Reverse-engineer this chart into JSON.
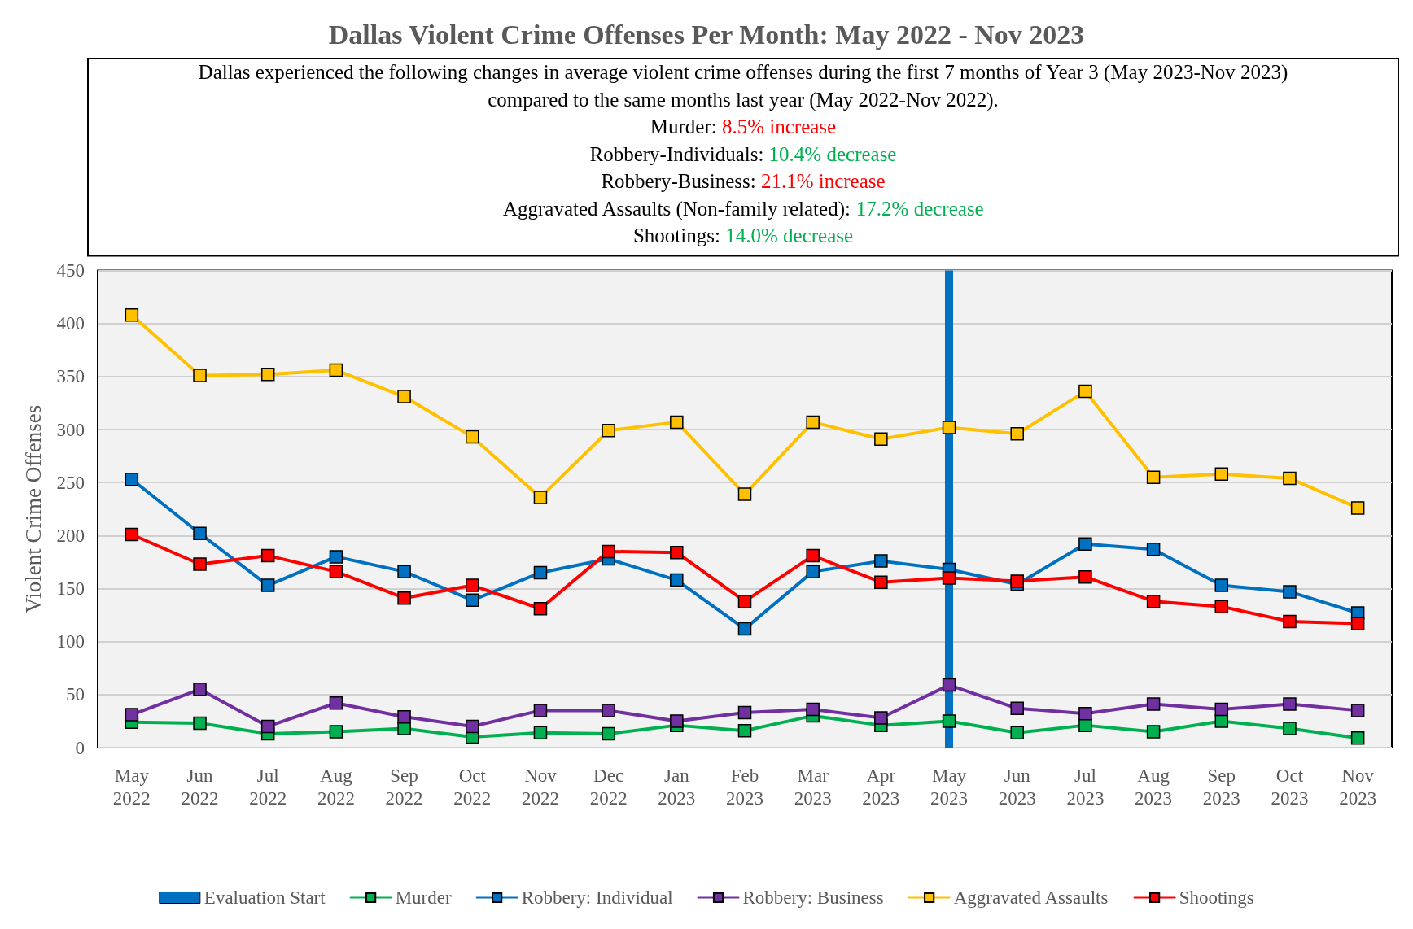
{
  "chart_data": {
    "type": "line",
    "title": "Dallas Violent Crime Offenses Per Month: May 2022 - Nov 2023",
    "annotations": [
      "Dallas experienced the following changes in average violent crime offenses during the first 7 months of Year 3 (May 2023-Nov 2023)",
      "compared to the same months last year (May 2022-Nov 2022).",
      "Murder: 8.5% increase",
      "Robbery-Individuals: 10.4% decrease",
      "Robbery-Business: 21.1% increase",
      "Aggravated Assaults (Non-family related): 17.2% decrease",
      "Shootings: 14.0% decrease"
    ],
    "ylabel": "Violent Crime Offenses",
    "categories": [
      "May 2022",
      "Jun 2022",
      "Jul 2022",
      "Aug 2022",
      "Sep 2022",
      "Oct 2022",
      "Nov 2022",
      "Dec 2022",
      "Jan 2023",
      "Feb 2023",
      "Mar 2023",
      "Apr 2023",
      "May 2023",
      "Jun 2023",
      "Jul 2023",
      "Aug 2023",
      "Sep 2023",
      "Oct 2023",
      "Nov 2023"
    ],
    "series": [
      {
        "name": "Murder",
        "color": "#00b050",
        "values": [
          24,
          23,
          13,
          15,
          18,
          10,
          14,
          13,
          21,
          16,
          30,
          21,
          25,
          14,
          21,
          15,
          25,
          18,
          9
        ]
      },
      {
        "name": "Robbery: Individual",
        "color": "#0070c0",
        "values": [
          253,
          202,
          153,
          180,
          166,
          139,
          165,
          178,
          158,
          112,
          166,
          176,
          168,
          154,
          192,
          187,
          153,
          147,
          127
        ]
      },
      {
        "name": "Robbery: Business",
        "color": "#7030a0",
        "values": [
          31,
          55,
          20,
          42,
          29,
          20,
          35,
          35,
          25,
          33,
          36,
          28,
          59,
          37,
          32,
          41,
          36,
          41,
          35
        ]
      },
      {
        "name": "Aggravated Assaults",
        "color": "#ffc000",
        "values": [
          408,
          351,
          352,
          356,
          331,
          293,
          236,
          299,
          307,
          239,
          307,
          291,
          302,
          296,
          336,
          255,
          258,
          254,
          226
        ]
      },
      {
        "name": "Shootings",
        "color": "#ff0000",
        "values": [
          201,
          173,
          181,
          166,
          141,
          153,
          131,
          185,
          184,
          138,
          181,
          156,
          160,
          157,
          161,
          138,
          133,
          119,
          117
        ]
      }
    ],
    "ref_lines": [
      {
        "axis": "x",
        "value": "May 2023",
        "label": "Evaluation Start",
        "color": "#0070c0"
      }
    ],
    "ylim": [
      0,
      450
    ],
    "yticks": [
      0,
      50,
      100,
      150,
      200,
      250,
      300,
      350,
      400,
      450
    ],
    "grid": "y",
    "legend": "bottom",
    "marker": "square",
    "line_style": "solid"
  }
}
